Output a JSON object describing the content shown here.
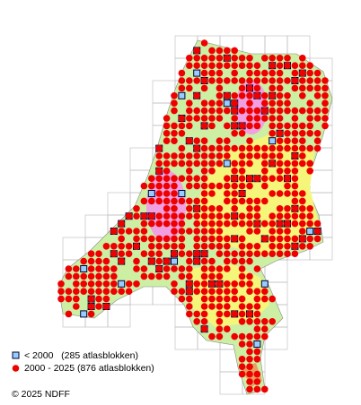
{
  "legend": [
    {
      "label": "< 2000   (285 atlasblokken)"
    },
    {
      "label": "2000 - 2025 (876 atlasblokken)"
    }
  ],
  "copyright": "© 2025 NDFF"
}
